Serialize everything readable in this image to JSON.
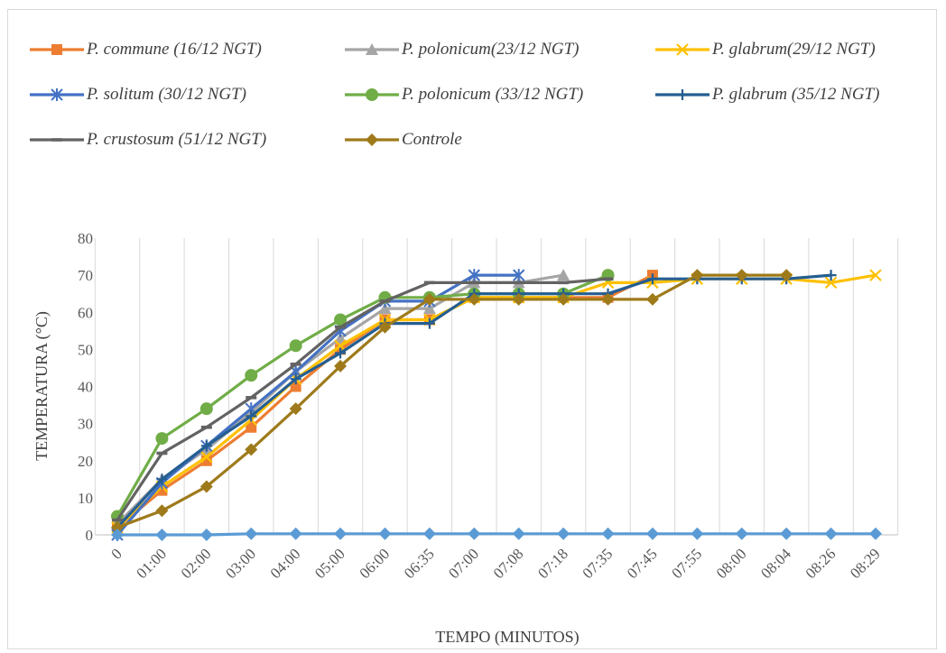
{
  "chart_data": {
    "type": "line",
    "title": "",
    "xlabel": "TEMPO (MINUTOS)",
    "ylabel": "TEMPERATURA (°C)",
    "ylim": [
      0,
      80
    ],
    "yticks": [
      0,
      10,
      20,
      30,
      40,
      50,
      60,
      70,
      80
    ],
    "grid": "vertical",
    "legend_position": "top",
    "categories": [
      "0",
      "01:00",
      "02:00",
      "03:00",
      "04:00",
      "05:00",
      "06:00",
      "06:35",
      "07:00",
      "07:08",
      "07:18",
      "07:35",
      "07:45",
      "07:55",
      "08:00",
      "08:04",
      "08:26",
      "08:29"
    ],
    "series": [
      {
        "name": "P. commune (16/12 NGT)",
        "color": "#ED7D31",
        "marker": "square",
        "values": [
          2,
          12,
          20,
          29,
          40,
          50,
          58,
          58,
          64,
          64,
          64,
          64,
          70,
          null,
          null,
          null,
          null,
          null
        ]
      },
      {
        "name": "P. polonicum(23/12 NGT)",
        "color": "#A5A5A5",
        "marker": "triangle",
        "values": [
          3,
          15,
          23,
          33,
          44,
          53,
          61,
          61,
          68,
          68,
          70,
          null,
          null,
          null,
          null,
          null,
          null,
          null
        ]
      },
      {
        "name": "P. glabrum(29/12 NGT)",
        "color": "#FFC000",
        "marker": "x",
        "values": [
          2,
          13,
          21,
          31,
          42,
          51,
          58,
          58,
          64,
          64,
          64,
          68,
          68,
          69,
          69,
          69,
          68,
          70
        ]
      },
      {
        "name": "P. solitum (30/12 NGT)",
        "color": "#4472C4",
        "marker": "asterisk",
        "values": [
          0,
          14,
          24,
          34,
          44,
          55,
          63,
          63,
          70,
          70,
          null,
          null,
          null,
          null,
          null,
          null,
          null,
          null
        ]
      },
      {
        "name": "P. polonicum (33/12 NGT)",
        "color": "#70AD47",
        "marker": "circle",
        "values": [
          5,
          26,
          34,
          43,
          51,
          58,
          64,
          64,
          65,
          65,
          65,
          70,
          null,
          null,
          null,
          null,
          null,
          null
        ]
      },
      {
        "name": "P. glabrum (35/12 NGT)",
        "color": "#255E91",
        "marker": "plus",
        "values": [
          2,
          15,
          24,
          32,
          42,
          49,
          57,
          57,
          65,
          65,
          65,
          65,
          69,
          69,
          69,
          69,
          70,
          null
        ]
      },
      {
        "name": "P. crustosum (51/12 NGT)",
        "color": "#636363",
        "marker": "dash",
        "values": [
          4,
          22,
          29,
          37,
          46,
          56,
          63,
          68,
          68,
          68,
          68,
          69,
          null,
          null,
          null,
          null,
          null,
          null
        ]
      },
      {
        "name": "Controle",
        "color": "#9E7A1B",
        "marker": "diamond",
        "values": [
          2,
          6.5,
          13,
          23,
          34,
          45.5,
          56,
          63.5,
          63.5,
          63.5,
          63.5,
          63.5,
          63.5,
          70,
          70,
          70,
          null,
          null
        ]
      },
      {
        "name": "",
        "color": "#5B9BD5",
        "marker": "diamond",
        "values": [
          0,
          0,
          0,
          0.3,
          0.3,
          0.3,
          0.3,
          0.3,
          0.3,
          0.3,
          0.3,
          0.3,
          0.3,
          0.3,
          0.3,
          0.3,
          0.3,
          0.3
        ]
      }
    ]
  }
}
